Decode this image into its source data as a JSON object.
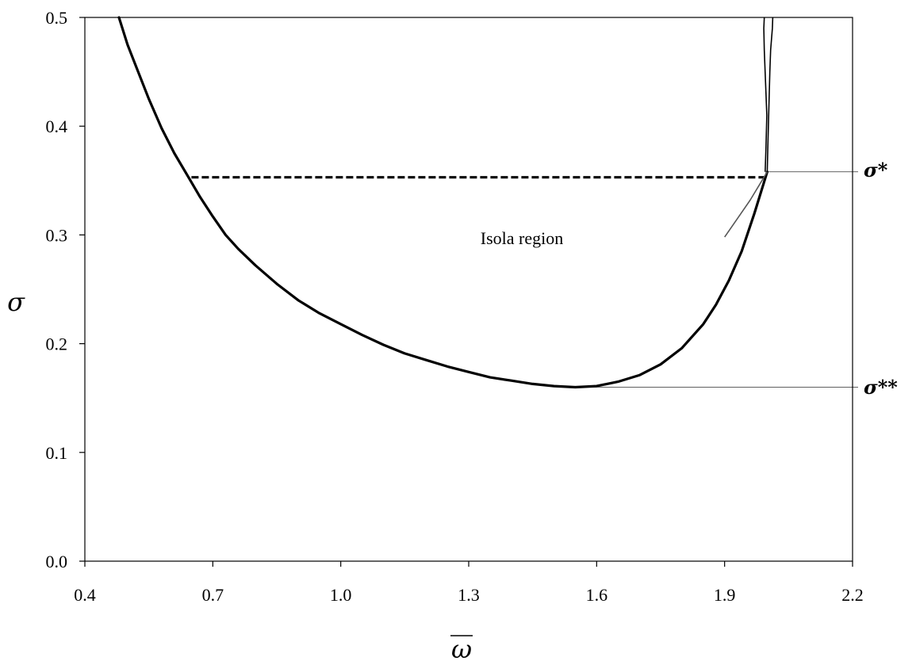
{
  "chart_data": {
    "type": "line",
    "xlabel": "ω",
    "ylabel": "σ",
    "xlim": [
      0.4,
      2.2
    ],
    "ylim": [
      0.0,
      0.5
    ],
    "x_ticks": [
      "0.4",
      "0.7",
      "1.0",
      "1.3",
      "1.6",
      "1.9",
      "2.2"
    ],
    "y_ticks": [
      "0.0",
      "0.1",
      "0.2",
      "0.3",
      "0.4",
      "0.5"
    ],
    "grid": false,
    "legend": "none",
    "annotations": {
      "region": "Isola region",
      "sigma_star": "σ*",
      "sigma_star_star": "σ**"
    },
    "reference_levels": {
      "sigma_star": 0.358,
      "sigma_star_star": 0.16
    },
    "series": [
      {
        "style": "thick-solid",
        "x": [
          0.48,
          0.5,
          0.52,
          0.55,
          0.58,
          0.61,
          0.64,
          0.67,
          0.7,
          0.73,
          0.76,
          0.8,
          0.85,
          0.9,
          0.95,
          1.0,
          1.05,
          1.1,
          1.15,
          1.2,
          1.25,
          1.3,
          1.35,
          1.4,
          1.45,
          1.5,
          1.55,
          1.6,
          1.65,
          1.7,
          1.75,
          1.8,
          1.85,
          1.88,
          1.91,
          1.94,
          1.97,
          2.0
        ],
        "y": [
          0.5,
          0.475,
          0.455,
          0.425,
          0.398,
          0.375,
          0.355,
          0.335,
          0.317,
          0.3,
          0.287,
          0.272,
          0.255,
          0.24,
          0.228,
          0.218,
          0.208,
          0.199,
          0.191,
          0.185,
          0.179,
          0.174,
          0.169,
          0.166,
          0.163,
          0.161,
          0.16,
          0.161,
          0.165,
          0.171,
          0.181,
          0.196,
          0.218,
          0.236,
          0.258,
          0.285,
          0.32,
          0.358
        ]
      },
      {
        "style": "dashed",
        "x": [
          0.65,
          2.0
        ],
        "y": [
          0.353,
          0.353
        ]
      },
      {
        "style": "thin-solid-left",
        "x": [
          1.995,
          1.997,
          1.999,
          1.996,
          1.993,
          1.992,
          1.993
        ],
        "y": [
          0.358,
          0.38,
          0.41,
          0.44,
          0.47,
          0.49,
          0.5
        ]
      },
      {
        "style": "thin-solid-right",
        "x": [
          2.0,
          2.002,
          2.004,
          2.006,
          2.008,
          2.012,
          2.013
        ],
        "y": [
          0.358,
          0.39,
          0.42,
          0.45,
          0.47,
          0.49,
          0.5
        ]
      },
      {
        "style": "thin-gray",
        "x": [
          1.9,
          1.93,
          1.96,
          2.0
        ],
        "y": [
          0.298,
          0.315,
          0.332,
          0.358
        ]
      }
    ]
  }
}
